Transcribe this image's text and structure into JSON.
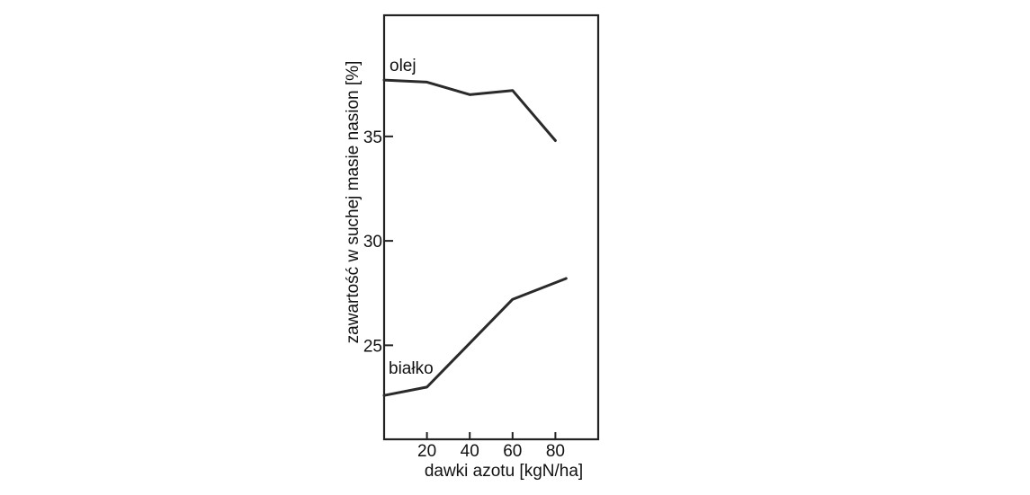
{
  "chart_data": {
    "type": "line",
    "title": "",
    "xlabel": "dawki azotu [kgN/ha]",
    "ylabel": "zawartość w suchej masie nasion [%]",
    "xlim": [
      0,
      100
    ],
    "ylim": [
      20.5,
      40.8
    ],
    "x_ticks": [
      20,
      40,
      60,
      80
    ],
    "y_ticks": [
      25,
      30,
      35
    ],
    "grid": false,
    "series": [
      {
        "name": "olej",
        "x": [
          0,
          20,
          40,
          60,
          80
        ],
        "y": [
          37.7,
          37.6,
          37.0,
          37.2,
          34.8
        ]
      },
      {
        "name": "białko",
        "x": [
          0,
          20,
          40,
          60,
          85
        ],
        "y": [
          22.6,
          23.0,
          25.1,
          27.2,
          28.2
        ]
      }
    ]
  }
}
